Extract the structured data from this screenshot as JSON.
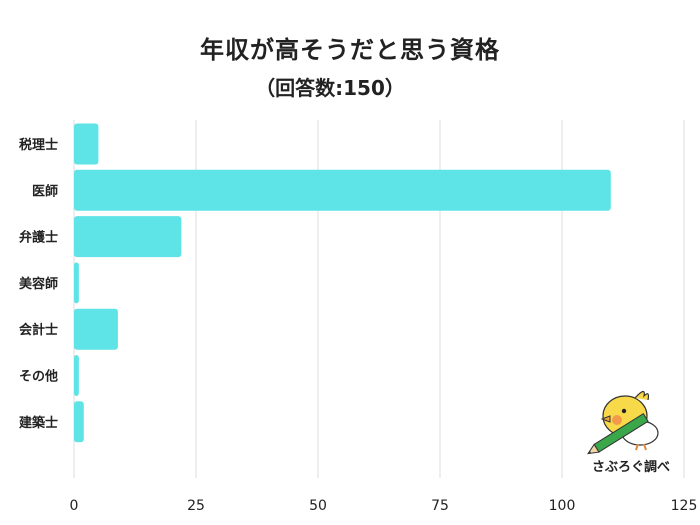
{
  "chart_data": {
    "type": "bar",
    "orientation": "horizontal",
    "title": "年収が高そうだと思う資格",
    "subtitle": "（回答数:150）",
    "categories": [
      "税理士",
      "医師",
      "弁護士",
      "美容師",
      "会計士",
      "その他",
      "建築士"
    ],
    "values": [
      5,
      110,
      22,
      1,
      9,
      1,
      2
    ],
    "xlim": [
      0,
      125
    ],
    "xticks": [
      "0",
      "25",
      "50",
      "75",
      "100",
      "125"
    ],
    "grid": true,
    "bar_color": "#5ee3e6",
    "grid_color": "#dddddd"
  },
  "credit": {
    "text": "さぶろぐ調べ",
    "mascot_icon": "bird-mascot-with-pencil-icon"
  }
}
